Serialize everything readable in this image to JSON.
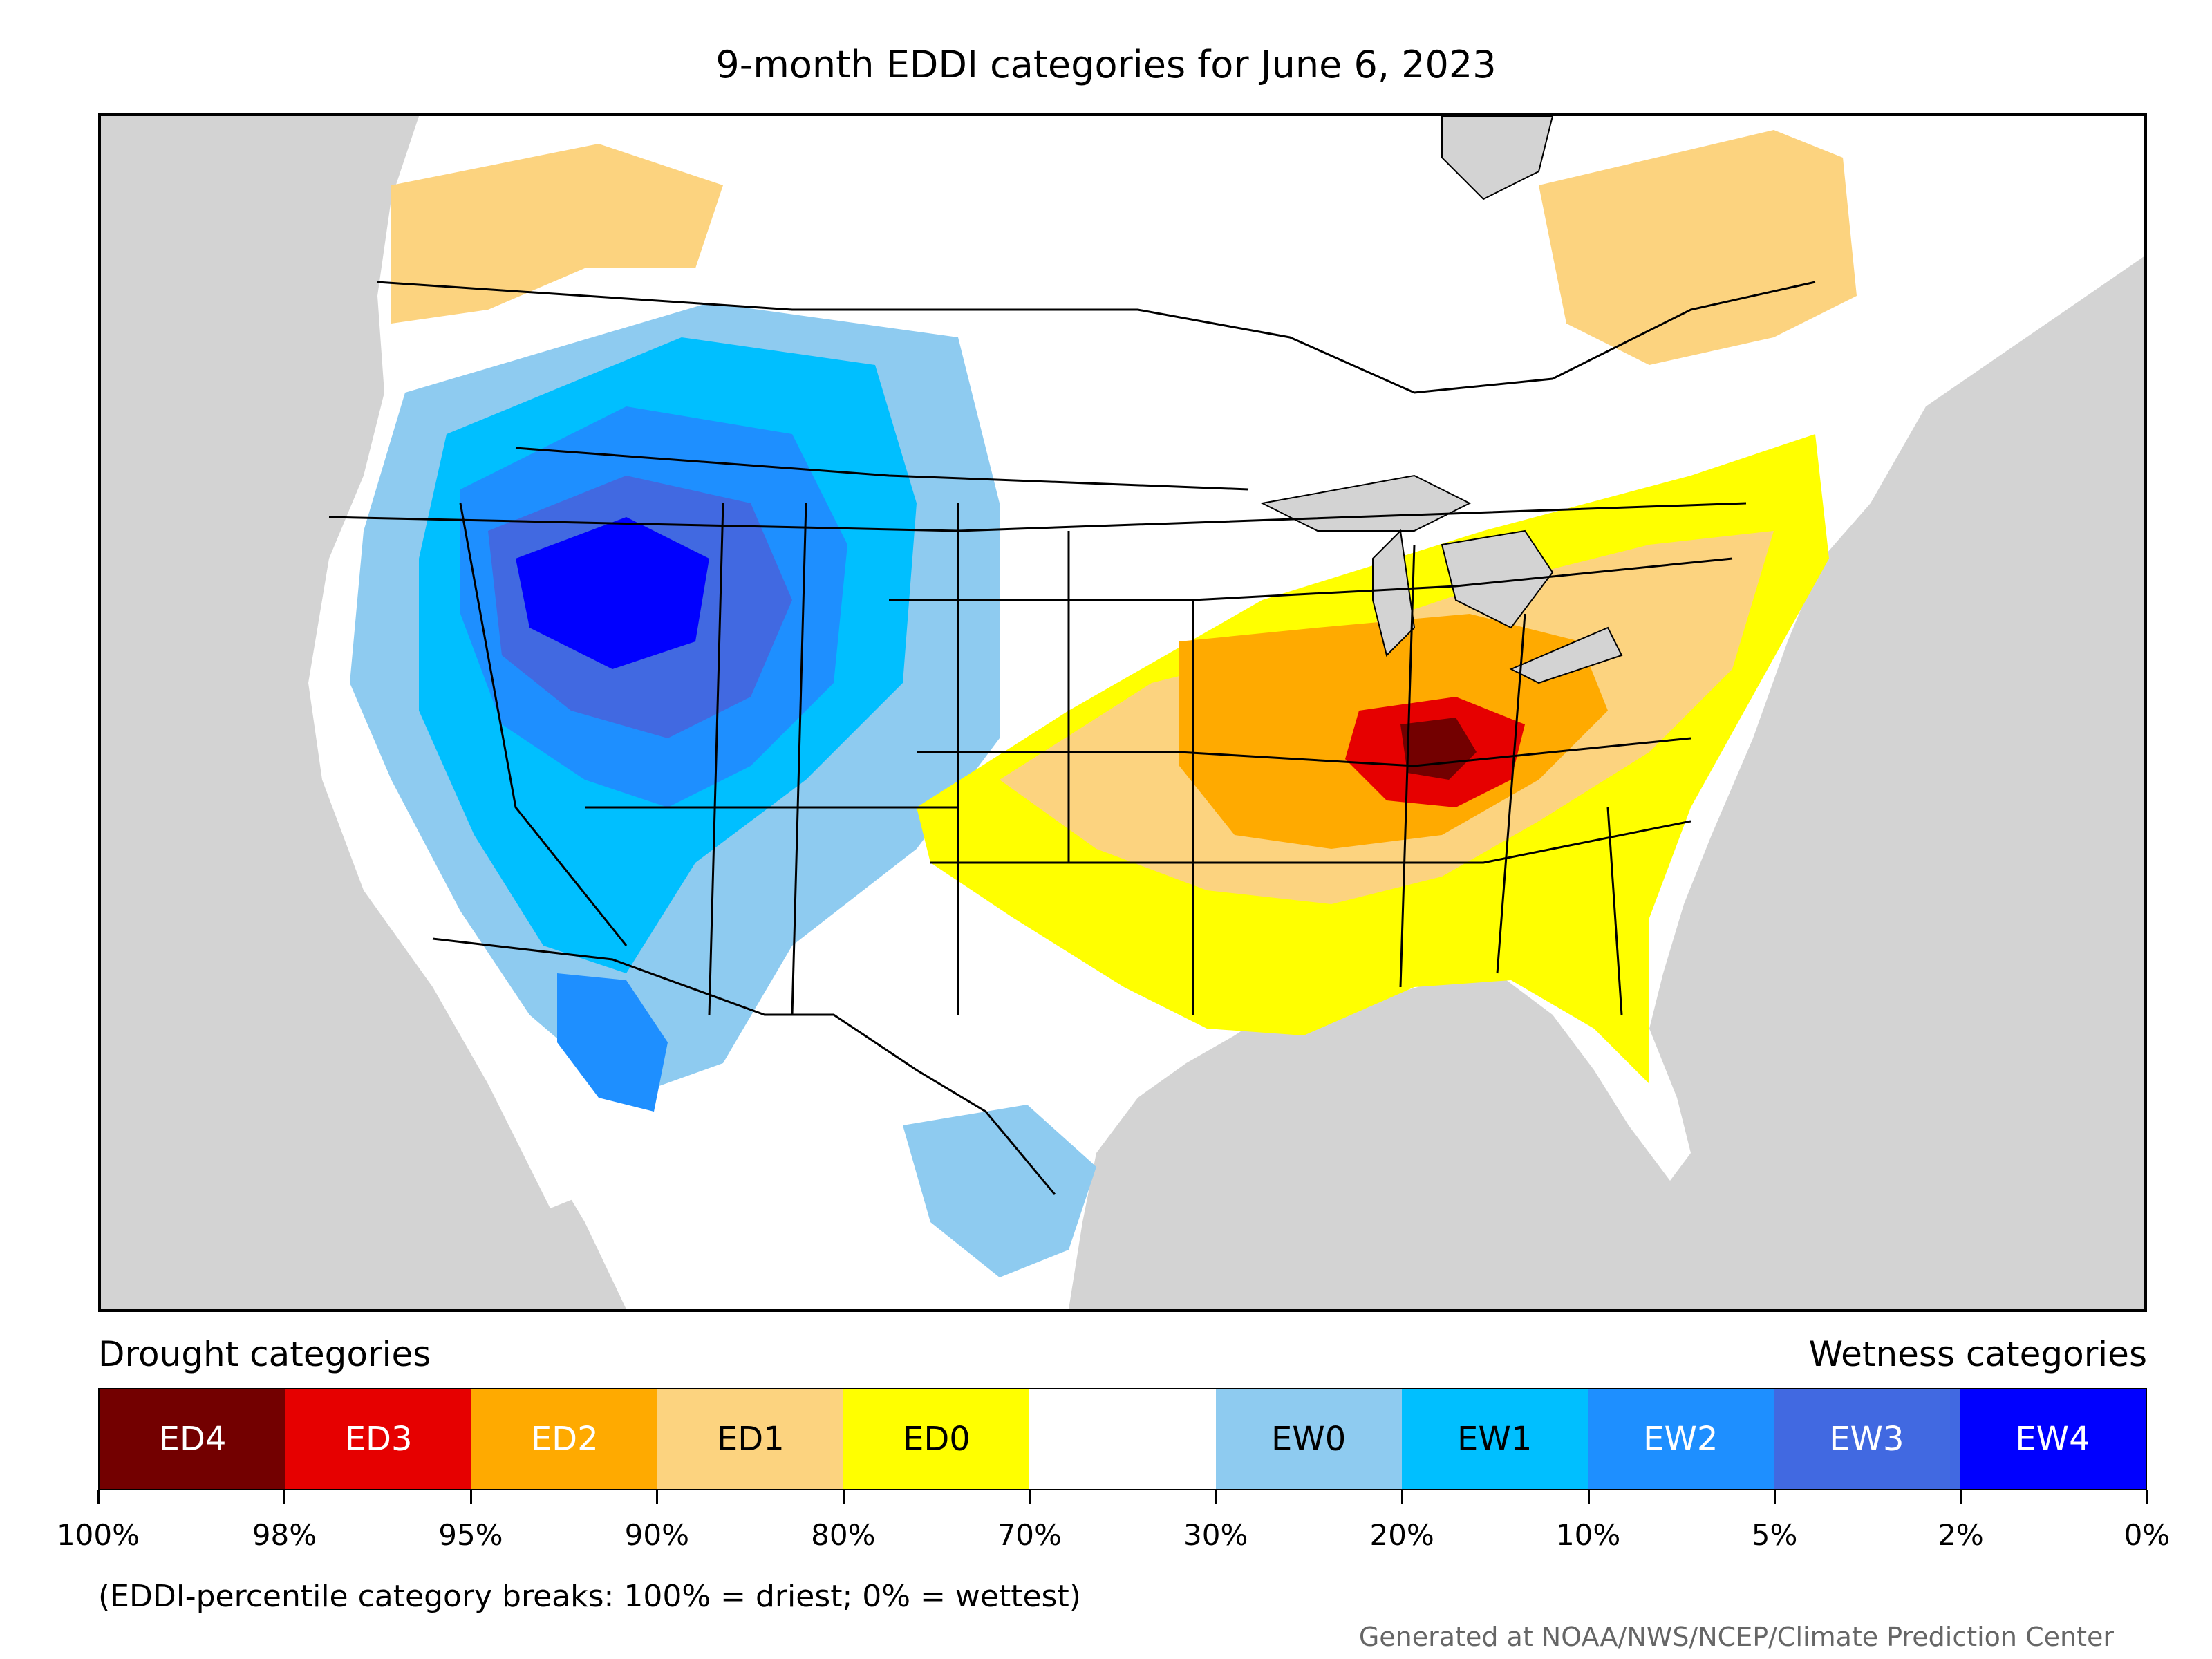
{
  "title": "9-month EDDI categories for June 6, 2023",
  "legend": {
    "drought_title": "Drought categories",
    "wetness_title": "Wetness categories",
    "categories": [
      {
        "label": "ED4",
        "color": "#730000",
        "text_color": "#ffffff"
      },
      {
        "label": "ED3",
        "color": "#e60000",
        "text_color": "#ffffff"
      },
      {
        "label": "ED2",
        "color": "#ffaa00",
        "text_color": "#ffffff"
      },
      {
        "label": "ED1",
        "color": "#fcd37f",
        "text_color": "#000000"
      },
      {
        "label": "ED0",
        "color": "#ffff00",
        "text_color": "#000000"
      },
      {
        "label": "",
        "color": "#ffffff",
        "text_color": "#000000"
      },
      {
        "label": "EW0",
        "color": "#8ecbf0",
        "text_color": "#000000"
      },
      {
        "label": "EW1",
        "color": "#00bfff",
        "text_color": "#000000"
      },
      {
        "label": "EW2",
        "color": "#1e8fff",
        "text_color": "#ffffff"
      },
      {
        "label": "EW3",
        "color": "#4169e1",
        "text_color": "#ffffff"
      },
      {
        "label": "EW4",
        "color": "#0000ff",
        "text_color": "#ffffff"
      }
    ],
    "breaks": [
      "100%",
      "98%",
      "95%",
      "90%",
      "80%",
      "70%",
      "30%",
      "20%",
      "10%",
      "5%",
      "2%",
      "0%"
    ]
  },
  "note": "(EDDI-percentile category breaks: 100% = driest; 0% = wettest)",
  "credit": "Generated at NOAA/NWS/NCEP/Climate Prediction Center"
}
